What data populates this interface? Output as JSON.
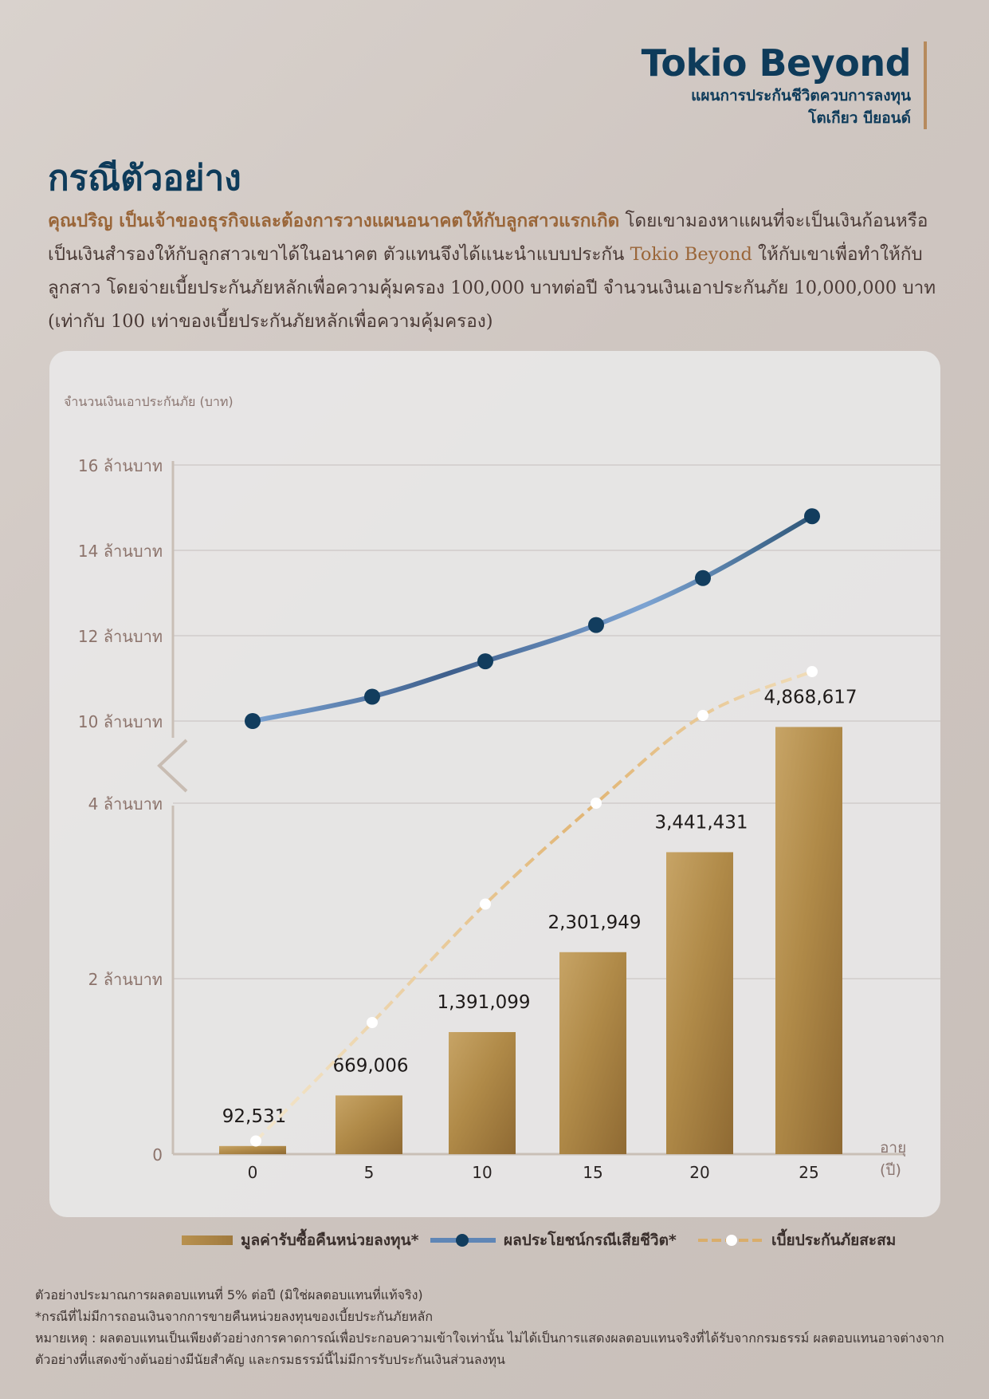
{
  "brand": {
    "title": "Tokio Beyond",
    "subtitle_line1": "แผนการประกันชีวิตควบการลงทุน",
    "subtitle_line2": "โตเกียว บียอนด์",
    "accent_color": "#b68a5d",
    "navy_color": "#0e3b5a"
  },
  "page_title": "กรณีตัวอย่าง",
  "intro": {
    "highlight": "คุณปริญ เป็นเจ้าของธุรกิจและต้องการวางแผนอนาคตให้กับลูกสาวแรกเกิด",
    "text1": " โดยเขามองหาแผนที่จะเป็นเงินก้อนหรือเป็นเงินสำรองให้กับลูกสาวเขาได้ในอนาคต ตัวแทนจึงได้แนะนำแบบประกัน ",
    "brand_inline": "Tokio Beyond",
    "text2": " ให้กับเขาเพื่อทำให้กับลูกสาว โดยจ่ายเบี้ยประกันภัยหลักเพื่อความคุ้มครอง 100,000 บาทต่อปี จำนวนเงินเอาประกันภัย 10,000,000 บาท (เท่ากับ 100 เท่าของเบี้ยประกันภัยหลักเพื่อความคุ้มครอง)"
  },
  "chart_data": {
    "type": "bar",
    "ylabel": "จำนวนเงินเอาประกันภัย (บาท)",
    "xlabel_line1": "อายุ",
    "xlabel_line2": "(ปี)",
    "y_axis_break": true,
    "lower_ylim": [
      0,
      5000000
    ],
    "upper_ylim": [
      9000000,
      16000000
    ],
    "y_tick_labels": [
      {
        "value": 0,
        "label": "0"
      },
      {
        "value": 2000000,
        "label": "2 ล้านบาท"
      },
      {
        "value": 4000000,
        "label": "4 ล้านบาท"
      },
      {
        "value": 10000000,
        "label": "10 ล้านบาท"
      },
      {
        "value": 12000000,
        "label": "12 ล้านบาท"
      },
      {
        "value": 14000000,
        "label": "14 ล้านบาท"
      },
      {
        "value": 16000000,
        "label": "16 ล้านบาท"
      }
    ],
    "categories": [
      "0",
      "5",
      "10",
      "15",
      "20",
      "25"
    ],
    "series": [
      {
        "name": "มูลค่ารับซื้อคืนหน่วยลงทุน*",
        "kind": "bar",
        "color": "#ad8745",
        "values": [
          92531,
          669006,
          1391099,
          2301949,
          3441431,
          4868617
        ],
        "data_labels": [
          "92,531",
          "669,006",
          "1,391,099",
          "2,301,949",
          "3,441,431",
          "4,868,617"
        ]
      },
      {
        "name": "ผลประโยชน์กรณีเสียชีวิต*",
        "kind": "line",
        "color": "#1f4a6e",
        "values": [
          10000000,
          10570000,
          11400000,
          12250000,
          13350000,
          14800000
        ]
      },
      {
        "name": "เบี้ยประกันภัยสะสม",
        "kind": "dashed-line",
        "color": "#d9ad6a",
        "values": [
          150000,
          1500000,
          2850000,
          4000000,
          5000000,
          5500000
        ]
      }
    ],
    "grid": true,
    "legend_position": "bottom"
  },
  "footnotes": [
    "ตัวอย่างประมาณการผลตอบแทนที่ 5% ต่อปี (มิใช่ผลตอบแทนที่แท้จริง)",
    "*กรณีที่ไม่มีการถอนเงินจากการขายคืนหน่วยลงทุนของเบี้ยประกันภัยหลัก",
    "หมายเหตุ : ผลตอบแทนเป็นเพียงตัวอย่างการคาดการณ์เพื่อประกอบความเข้าใจเท่านั้น ไม่ได้เป็นการแสดงผลตอบแทนจริงที่ได้รับจากกรมธรรม์ ผลตอบแทนอาจต่างจาก",
    "ตัวอย่างที่แสดงข้างต้นอย่างมีนัยสำคัญ และกรมธรรม์นี้ไม่มีการรับประกันเงินส่วนลงทุน"
  ]
}
